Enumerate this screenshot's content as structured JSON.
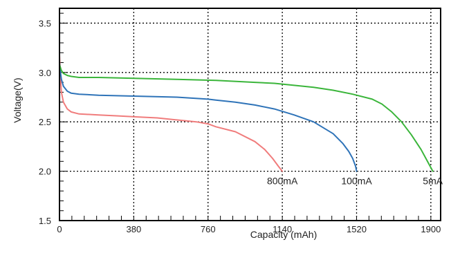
{
  "chart_data": {
    "type": "line",
    "title": "",
    "xlabel": "Capacity (mAh)",
    "ylabel": "Voltage(V)",
    "xlim": [
      0,
      1950
    ],
    "ylim": [
      1.5,
      3.65
    ],
    "x_ticks": [
      0,
      380,
      760,
      1140,
      1520,
      1900
    ],
    "x_tick_labels": [
      "0",
      "380",
      "760",
      "1140",
      "1520",
      "1900"
    ],
    "y_ticks": [
      1.5,
      2.0,
      2.5,
      3.0,
      3.5
    ],
    "y_tick_labels": [
      "1.5",
      "2.0",
      "2.5",
      "3.0",
      "3.5"
    ],
    "grid": true,
    "series": [
      {
        "name": "800mA",
        "color": "#f07c7c",
        "x": [
          0,
          5,
          10,
          20,
          40,
          60,
          100,
          200,
          300,
          400,
          500,
          600,
          700,
          760,
          800,
          900,
          1000,
          1050,
          1090,
          1120,
          1140
        ],
        "y": [
          3.18,
          2.95,
          2.8,
          2.7,
          2.63,
          2.6,
          2.58,
          2.57,
          2.56,
          2.55,
          2.54,
          2.52,
          2.5,
          2.48,
          2.45,
          2.4,
          2.3,
          2.22,
          2.13,
          2.05,
          2.0
        ]
      },
      {
        "name": "100mA",
        "color": "#2e73b8",
        "x": [
          0,
          5,
          10,
          20,
          40,
          60,
          100,
          200,
          400,
          600,
          760,
          800,
          900,
          1000,
          1100,
          1200,
          1300,
          1400,
          1450,
          1480,
          1500,
          1515,
          1520
        ],
        "y": [
          3.1,
          3.0,
          2.93,
          2.86,
          2.81,
          2.79,
          2.78,
          2.77,
          2.76,
          2.75,
          2.73,
          2.72,
          2.7,
          2.67,
          2.63,
          2.57,
          2.5,
          2.38,
          2.28,
          2.2,
          2.13,
          2.05,
          2.0
        ]
      },
      {
        "name": "5mA",
        "color": "#3ab53a",
        "x": [
          0,
          5,
          10,
          20,
          40,
          60,
          100,
          200,
          400,
          600,
          800,
          1000,
          1100,
          1200,
          1300,
          1400,
          1500,
          1600,
          1650,
          1700,
          1750,
          1800,
          1850,
          1880,
          1910
        ],
        "y": [
          3.08,
          3.05,
          3.02,
          2.99,
          2.97,
          2.96,
          2.95,
          2.95,
          2.94,
          2.93,
          2.92,
          2.9,
          2.89,
          2.87,
          2.85,
          2.82,
          2.78,
          2.73,
          2.68,
          2.6,
          2.5,
          2.37,
          2.22,
          2.11,
          2.0
        ]
      }
    ],
    "annotations": [
      {
        "text": "800mA",
        "series": "800mA",
        "x": 1140,
        "y": 1.95
      },
      {
        "text": "100mA",
        "series": "100mA",
        "x": 1520,
        "y": 1.95
      },
      {
        "text": "5mA",
        "series": "5mA",
        "x": 1910,
        "y": 1.95
      }
    ]
  }
}
